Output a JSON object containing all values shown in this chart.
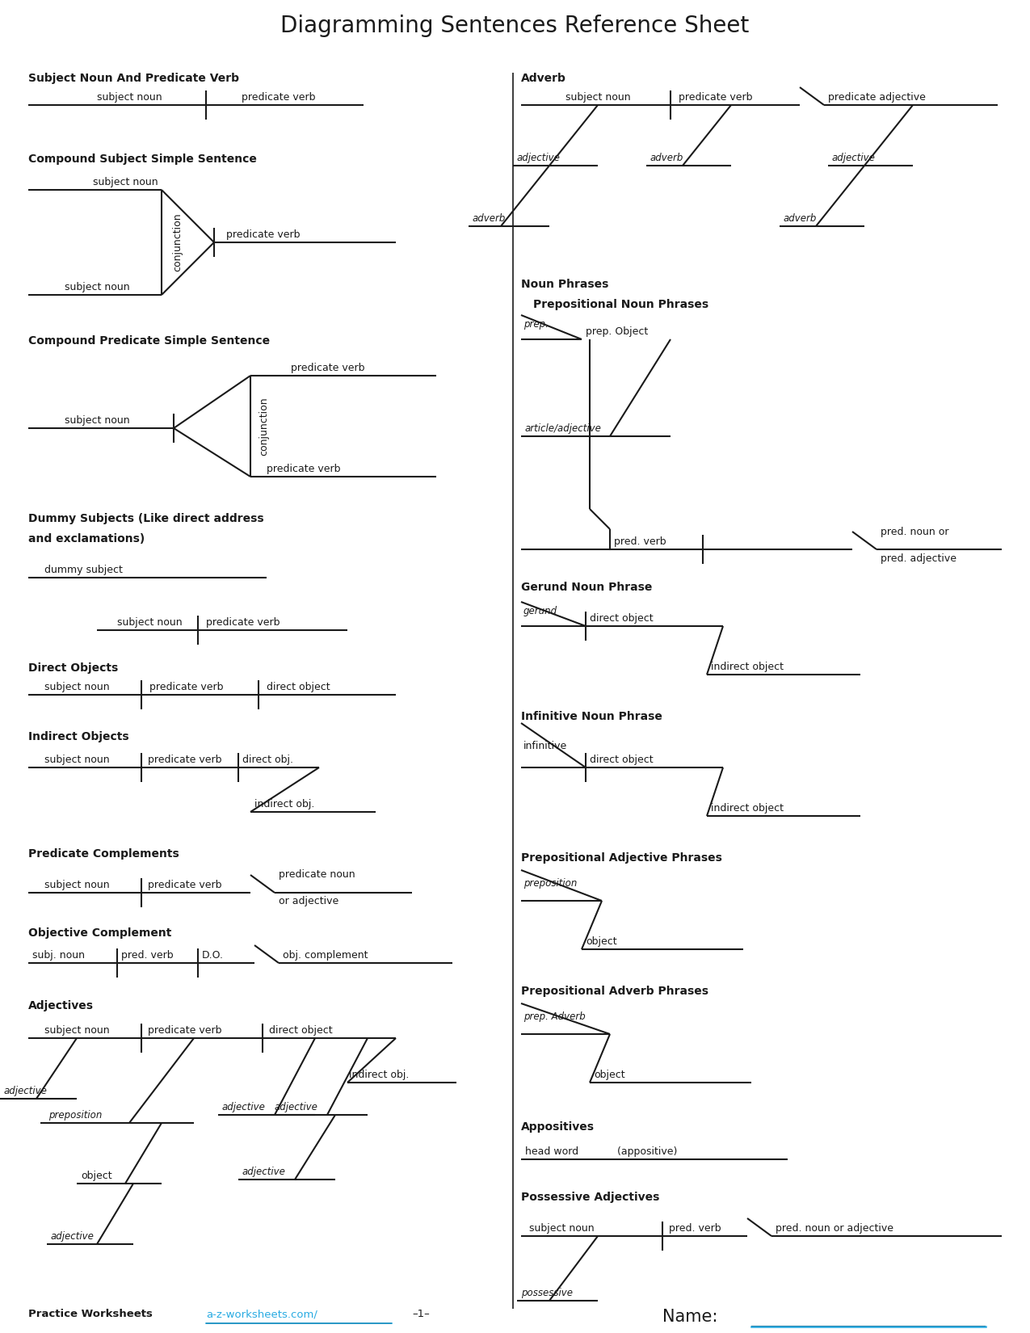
{
  "title": "Diagramming Sentences Reference Sheet",
  "bg_color": "#ffffff",
  "text_color": "#1a1a1a",
  "line_color": "#1a1a1a",
  "link_color": "#29abe2",
  "footer_left": "Practice Worksheets",
  "footer_link": "a-z-worksheets.com/",
  "footer_page": "–1–",
  "footer_name": "Name:"
}
